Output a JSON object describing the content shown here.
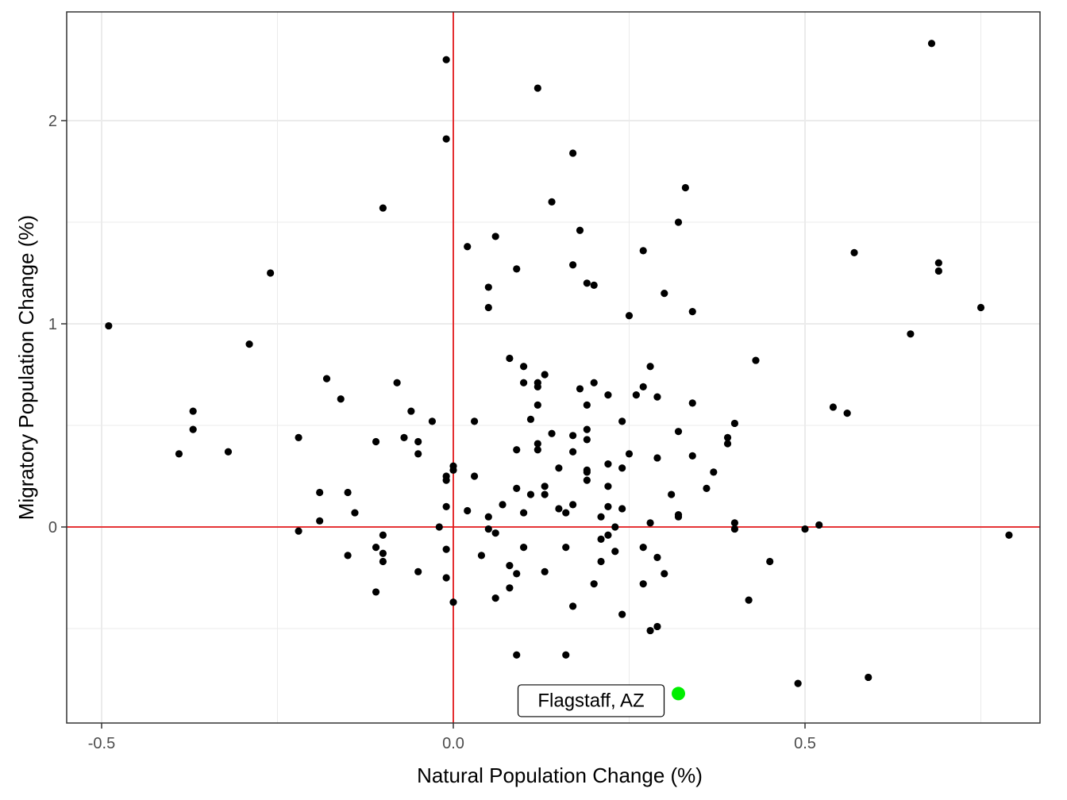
{
  "chart_data": {
    "type": "scatter",
    "title": "",
    "xlabel": "Natural Population Change (%)",
    "ylabel": "Migratory Population Change (%)",
    "xlim": [
      -0.5,
      0.8
    ],
    "ylim": [
      -0.9,
      2.5
    ],
    "x_ticks": [
      -0.5,
      0.0,
      0.5
    ],
    "x_tick_labels": [
      "-0.5",
      "0.0",
      "0.5"
    ],
    "y_ticks": [
      0,
      1,
      2
    ],
    "y_tick_labels": [
      "0",
      "1",
      "2"
    ],
    "grid": true,
    "reference_lines": {
      "x": 0,
      "y": 0,
      "color": "#e41a1c"
    },
    "point_color": "#000000",
    "highlight": {
      "label": "Flagstaff, AZ",
      "x": 0.32,
      "y": -0.82,
      "color": "#00ee00"
    },
    "points": [
      [
        0.68,
        2.38
      ],
      [
        -0.01,
        2.3
      ],
      [
        0.12,
        2.16
      ],
      [
        -0.01,
        1.91
      ],
      [
        0.17,
        1.84
      ],
      [
        0.33,
        1.67
      ],
      [
        0.14,
        1.6
      ],
      [
        -0.1,
        1.57
      ],
      [
        0.32,
        1.5
      ],
      [
        0.18,
        1.46
      ],
      [
        0.06,
        1.43
      ],
      [
        0.02,
        1.38
      ],
      [
        0.27,
        1.36
      ],
      [
        0.57,
        1.35
      ],
      [
        0.69,
        1.3
      ],
      [
        0.17,
        1.29
      ],
      [
        0.09,
        1.27
      ],
      [
        0.69,
        1.26
      ],
      [
        -0.26,
        1.25
      ],
      [
        0.19,
        1.2
      ],
      [
        0.2,
        1.19
      ],
      [
        0.05,
        1.18
      ],
      [
        0.3,
        1.15
      ],
      [
        0.75,
        1.08
      ],
      [
        0.05,
        1.08
      ],
      [
        0.34,
        1.06
      ],
      [
        0.25,
        1.04
      ],
      [
        -0.49,
        0.99
      ],
      [
        0.65,
        0.95
      ],
      [
        -0.29,
        0.9
      ],
      [
        0.08,
        0.83
      ],
      [
        0.43,
        0.82
      ],
      [
        0.28,
        0.79
      ],
      [
        0.1,
        0.79
      ],
      [
        0.13,
        0.75
      ],
      [
        -0.18,
        0.73
      ],
      [
        0.2,
        0.71
      ],
      [
        -0.08,
        0.71
      ],
      [
        0.1,
        0.71
      ],
      [
        0.12,
        0.71
      ],
      [
        0.12,
        0.69
      ],
      [
        0.27,
        0.69
      ],
      [
        0.18,
        0.68
      ],
      [
        0.22,
        0.65
      ],
      [
        0.26,
        0.65
      ],
      [
        0.29,
        0.64
      ],
      [
        -0.16,
        0.63
      ],
      [
        0.34,
        0.61
      ],
      [
        0.19,
        0.6
      ],
      [
        0.12,
        0.6
      ],
      [
        0.54,
        0.59
      ],
      [
        -0.37,
        0.57
      ],
      [
        -0.06,
        0.57
      ],
      [
        0.56,
        0.56
      ],
      [
        0.11,
        0.53
      ],
      [
        0.24,
        0.52
      ],
      [
        -0.03,
        0.52
      ],
      [
        0.03,
        0.52
      ],
      [
        0.4,
        0.51
      ],
      [
        -0.37,
        0.48
      ],
      [
        0.19,
        0.48
      ],
      [
        0.32,
        0.47
      ],
      [
        0.14,
        0.46
      ],
      [
        0.17,
        0.45
      ],
      [
        -0.22,
        0.44
      ],
      [
        0.39,
        0.44
      ],
      [
        -0.07,
        0.44
      ],
      [
        0.19,
        0.43
      ],
      [
        -0.05,
        0.42
      ],
      [
        -0.11,
        0.42
      ],
      [
        0.12,
        0.41
      ],
      [
        0.39,
        0.41
      ],
      [
        0.09,
        0.38
      ],
      [
        0.12,
        0.38
      ],
      [
        0.17,
        0.37
      ],
      [
        -0.32,
        0.37
      ],
      [
        -0.39,
        0.36
      ],
      [
        -0.05,
        0.36
      ],
      [
        0.25,
        0.36
      ],
      [
        0.34,
        0.35
      ],
      [
        0.29,
        0.34
      ],
      [
        0.22,
        0.31
      ],
      [
        0.0,
        0.3
      ],
      [
        0.0,
        0.28
      ],
      [
        0.15,
        0.29
      ],
      [
        0.24,
        0.29
      ],
      [
        0.19,
        0.28
      ],
      [
        0.19,
        0.27
      ],
      [
        0.37,
        0.27
      ],
      [
        0.03,
        0.25
      ],
      [
        -0.01,
        0.25
      ],
      [
        -0.01,
        0.23
      ],
      [
        0.19,
        0.23
      ],
      [
        0.13,
        0.2
      ],
      [
        0.22,
        0.2
      ],
      [
        0.09,
        0.19
      ],
      [
        0.36,
        0.19
      ],
      [
        -0.19,
        0.17
      ],
      [
        -0.15,
        0.17
      ],
      [
        0.11,
        0.16
      ],
      [
        0.13,
        0.16
      ],
      [
        0.31,
        0.16
      ],
      [
        0.07,
        0.11
      ],
      [
        0.17,
        0.11
      ],
      [
        -0.01,
        0.1
      ],
      [
        0.22,
        0.1
      ],
      [
        0.24,
        0.09
      ],
      [
        0.15,
        0.09
      ],
      [
        0.02,
        0.08
      ],
      [
        0.16,
        0.07
      ],
      [
        -0.14,
        0.07
      ],
      [
        0.1,
        0.07
      ],
      [
        0.32,
        0.06
      ],
      [
        0.32,
        0.05
      ],
      [
        0.05,
        0.05
      ],
      [
        0.21,
        0.05
      ],
      [
        -0.19,
        0.03
      ],
      [
        0.28,
        0.02
      ],
      [
        0.4,
        0.02
      ],
      [
        0.52,
        0.01
      ],
      [
        -0.02,
        0.0
      ],
      [
        0.23,
        0.0
      ],
      [
        0.05,
        -0.01
      ],
      [
        0.4,
        -0.01
      ],
      [
        0.5,
        -0.01
      ],
      [
        -0.22,
        -0.02
      ],
      [
        0.06,
        -0.03
      ],
      [
        0.79,
        -0.04
      ],
      [
        -0.1,
        -0.04
      ],
      [
        0.22,
        -0.04
      ],
      [
        0.21,
        -0.06
      ],
      [
        -0.11,
        -0.1
      ],
      [
        -0.01,
        -0.11
      ],
      [
        0.1,
        -0.1
      ],
      [
        0.16,
        -0.1
      ],
      [
        0.27,
        -0.1
      ],
      [
        0.23,
        -0.12
      ],
      [
        -0.1,
        -0.13
      ],
      [
        0.04,
        -0.14
      ],
      [
        -0.15,
        -0.14
      ],
      [
        0.29,
        -0.15
      ],
      [
        -0.1,
        -0.17
      ],
      [
        0.45,
        -0.17
      ],
      [
        0.21,
        -0.17
      ],
      [
        0.08,
        -0.19
      ],
      [
        -0.05,
        -0.22
      ],
      [
        0.13,
        -0.22
      ],
      [
        0.3,
        -0.23
      ],
      [
        0.09,
        -0.23
      ],
      [
        -0.01,
        -0.25
      ],
      [
        0.2,
        -0.28
      ],
      [
        0.27,
        -0.28
      ],
      [
        0.08,
        -0.3
      ],
      [
        -0.11,
        -0.32
      ],
      [
        0.06,
        -0.35
      ],
      [
        0.42,
        -0.36
      ],
      [
        0.0,
        -0.37
      ],
      [
        0.17,
        -0.39
      ],
      [
        0.24,
        -0.43
      ],
      [
        0.29,
        -0.49
      ],
      [
        0.28,
        -0.51
      ],
      [
        0.09,
        -0.63
      ],
      [
        0.16,
        -0.63
      ],
      [
        0.59,
        -0.74
      ],
      [
        0.49,
        -0.77
      ]
    ]
  }
}
